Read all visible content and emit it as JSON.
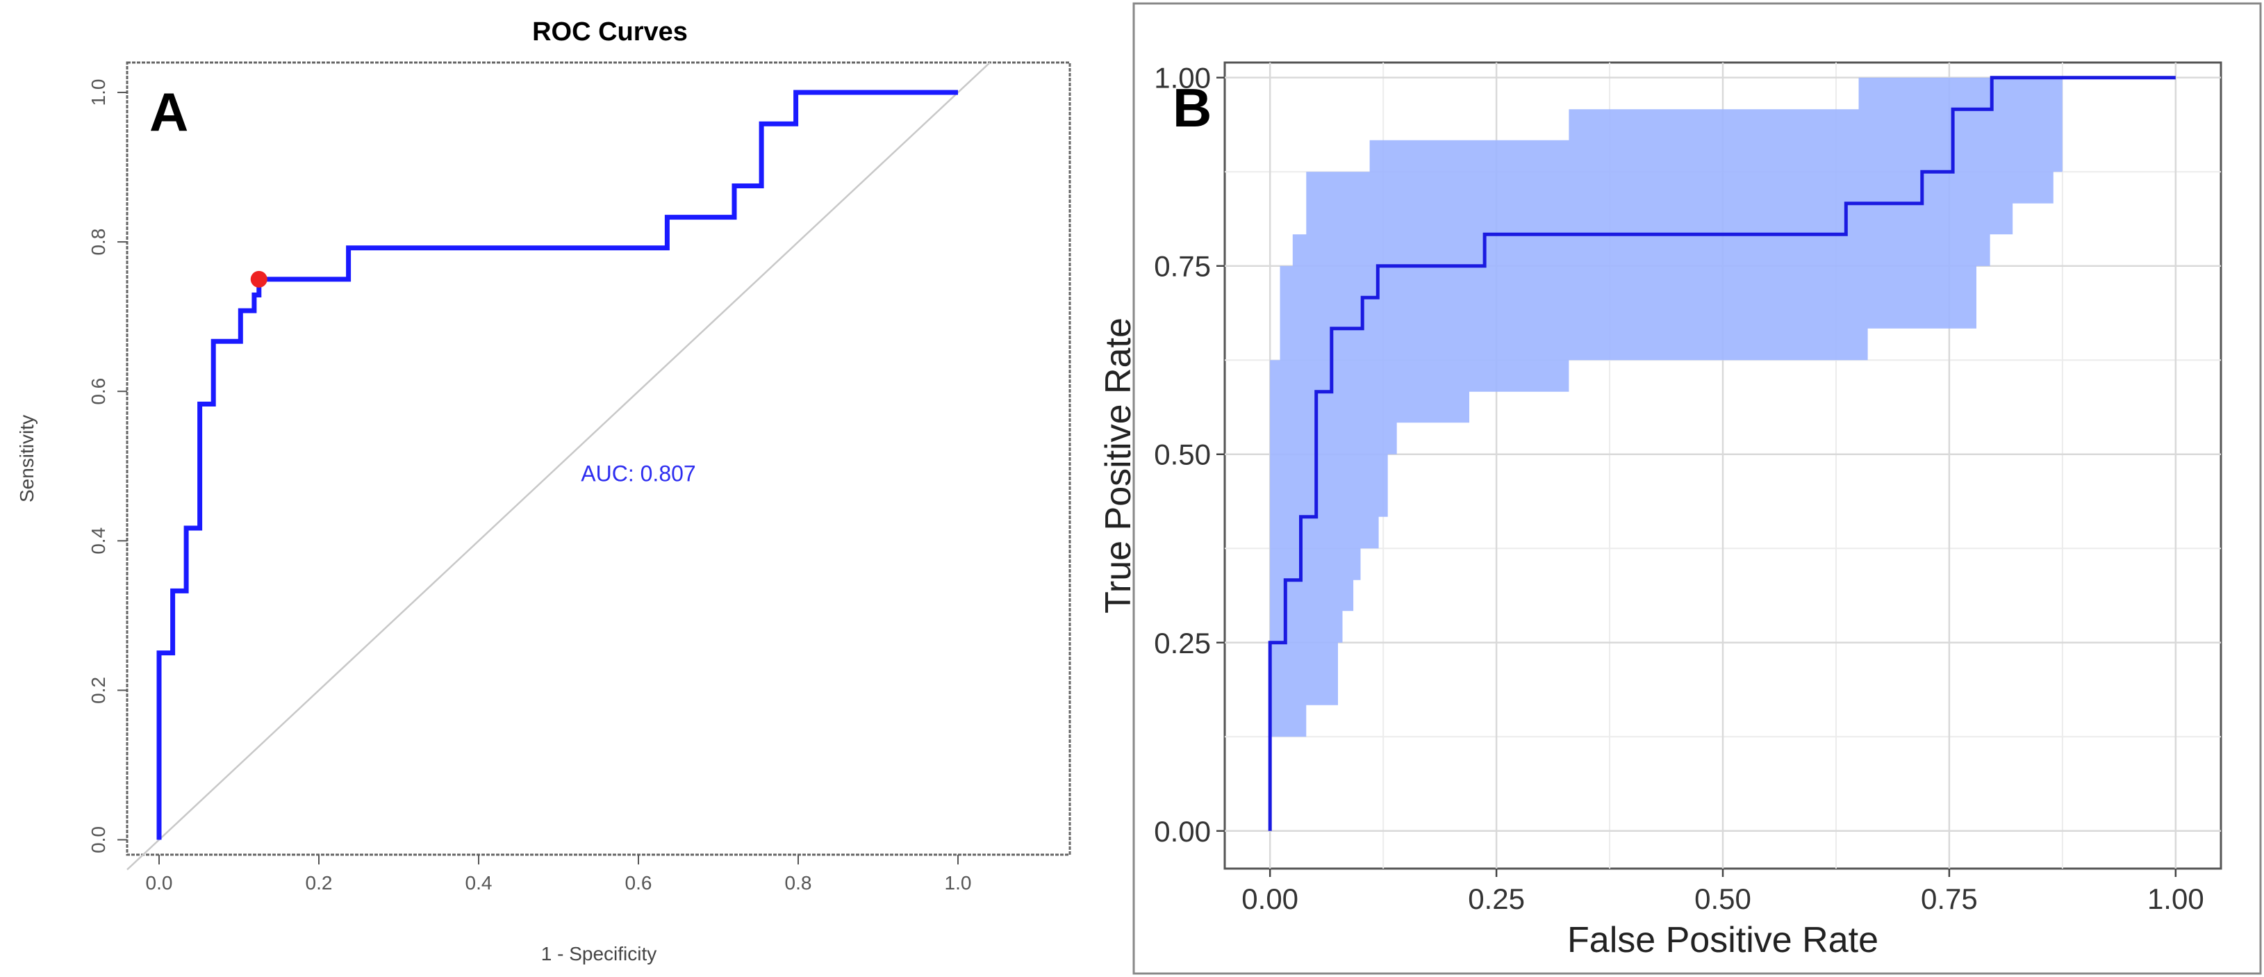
{
  "chart_data": [
    {
      "panel_label": "A",
      "type": "line",
      "title": "ROC Curves",
      "xlabel": "1 - Specificity",
      "ylabel": "Sensitivity",
      "xlim": [
        -0.04,
        1.14
      ],
      "ylim": [
        -0.02,
        1.04
      ],
      "xticks": [
        "0.0",
        "0.2",
        "0.4",
        "0.6",
        "0.8",
        "1.0"
      ],
      "yticks": [
        "0.0",
        "0.2",
        "0.4",
        "0.6",
        "0.8",
        "1.0"
      ],
      "auc_label": "AUC: 0.807",
      "auc_position": [
        0.6,
        0.48
      ],
      "line_color": "#1a1aff",
      "diagonal_color": "#c8c8c8",
      "optimal_point_color": "#ee2222",
      "optimal_point": [
        0.125,
        0.75
      ],
      "roc": [
        [
          0,
          0
        ],
        [
          0,
          0.25
        ],
        [
          0.017,
          0.25
        ],
        [
          0.017,
          0.333
        ],
        [
          0.034,
          0.333
        ],
        [
          0.034,
          0.417
        ],
        [
          0.051,
          0.417
        ],
        [
          0.051,
          0.583
        ],
        [
          0.068,
          0.583
        ],
        [
          0.068,
          0.667
        ],
        [
          0.102,
          0.667
        ],
        [
          0.102,
          0.708
        ],
        [
          0.119,
          0.708
        ],
        [
          0.119,
          0.729
        ],
        [
          0.125,
          0.729
        ],
        [
          0.125,
          0.75
        ],
        [
          0.237,
          0.75
        ],
        [
          0.237,
          0.792
        ],
        [
          0.636,
          0.792
        ],
        [
          0.636,
          0.833
        ],
        [
          0.72,
          0.833
        ],
        [
          0.72,
          0.875
        ],
        [
          0.754,
          0.875
        ],
        [
          0.754,
          0.958
        ],
        [
          0.797,
          0.958
        ],
        [
          0.797,
          1.0
        ],
        [
          1.0,
          1.0
        ]
      ]
    },
    {
      "panel_label": "B",
      "type": "area",
      "title": "",
      "xlabel": "False Positive Rate",
      "ylabel": "True Positive Rate",
      "xlim": [
        -0.05,
        1.05
      ],
      "ylim": [
        -0.05,
        1.02
      ],
      "xticks": [
        "0.00",
        "0.25",
        "0.50",
        "0.75",
        "1.00"
      ],
      "yticks": [
        "0.00",
        "0.25",
        "0.50",
        "0.75",
        "1.00"
      ],
      "grid": true,
      "line_color": "#1a1ae0",
      "band_color": "#9db5ff",
      "roc": [
        [
          0,
          0
        ],
        [
          0,
          0.25
        ],
        [
          0.017,
          0.25
        ],
        [
          0.017,
          0.333
        ],
        [
          0.034,
          0.333
        ],
        [
          0.034,
          0.417
        ],
        [
          0.051,
          0.417
        ],
        [
          0.051,
          0.583
        ],
        [
          0.068,
          0.583
        ],
        [
          0.068,
          0.667
        ],
        [
          0.102,
          0.667
        ],
        [
          0.102,
          0.708
        ],
        [
          0.119,
          0.708
        ],
        [
          0.119,
          0.75
        ],
        [
          0.237,
          0.75
        ],
        [
          0.237,
          0.792
        ],
        [
          0.636,
          0.792
        ],
        [
          0.636,
          0.833
        ],
        [
          0.72,
          0.833
        ],
        [
          0.72,
          0.875
        ],
        [
          0.754,
          0.875
        ],
        [
          0.754,
          0.958
        ],
        [
          0.797,
          0.958
        ],
        [
          0.797,
          1.0
        ],
        [
          1.0,
          1.0
        ]
      ],
      "band_upper": [
        [
          0,
          0.625
        ],
        [
          0.011,
          0.625
        ],
        [
          0.011,
          0.75
        ],
        [
          0.025,
          0.75
        ],
        [
          0.025,
          0.792
        ],
        [
          0.04,
          0.792
        ],
        [
          0.04,
          0.875
        ],
        [
          0.11,
          0.875
        ],
        [
          0.11,
          0.917
        ],
        [
          0.33,
          0.917
        ],
        [
          0.33,
          0.958
        ],
        [
          0.65,
          0.958
        ],
        [
          0.65,
          1.0
        ],
        [
          0.89,
          1.0
        ]
      ],
      "band_lower": [
        [
          0.89,
          1.0
        ],
        [
          0.875,
          1.0
        ],
        [
          0.875,
          0.875
        ],
        [
          0.865,
          0.875
        ],
        [
          0.865,
          0.833
        ],
        [
          0.86,
          0.833
        ],
        [
          0.86,
          0.833
        ],
        [
          0.82,
          0.833
        ],
        [
          0.82,
          0.792
        ],
        [
          0.795,
          0.792
        ],
        [
          0.795,
          0.75
        ],
        [
          0.78,
          0.75
        ],
        [
          0.78,
          0.667
        ],
        [
          0.66,
          0.667
        ],
        [
          0.66,
          0.625
        ],
        [
          0.33,
          0.625
        ],
        [
          0.33,
          0.583
        ],
        [
          0.22,
          0.583
        ],
        [
          0.22,
          0.542
        ],
        [
          0.14,
          0.542
        ],
        [
          0.14,
          0.5
        ],
        [
          0.13,
          0.5
        ],
        [
          0.13,
          0.417
        ],
        [
          0.12,
          0.417
        ],
        [
          0.12,
          0.375
        ],
        [
          0.1,
          0.375
        ],
        [
          0.1,
          0.333
        ],
        [
          0.092,
          0.333
        ],
        [
          0.092,
          0.292
        ],
        [
          0.08,
          0.292
        ],
        [
          0.08,
          0.25
        ],
        [
          0.075,
          0.25
        ],
        [
          0.075,
          0.167
        ],
        [
          0.04,
          0.167
        ],
        [
          0.04,
          0.125
        ],
        [
          0.0,
          0.125
        ]
      ]
    }
  ]
}
